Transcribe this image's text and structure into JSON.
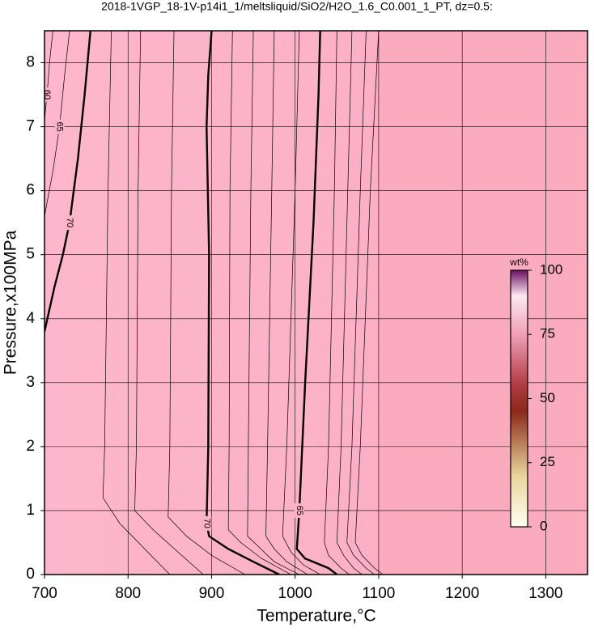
{
  "chart_data": {
    "type": "contour",
    "title": "2018-1VGP_18-1V-p14i1_1/meltsliquid/SiO2/H2O_1.6_C0.001_1_PT, dz=0.5:",
    "x_label": "Temperature,°C",
    "y_label": "Pressure,x100MPa",
    "xlim": [
      700,
      1350
    ],
    "ylim": [
      0,
      8.5
    ],
    "xticks": [
      700,
      800,
      900,
      1000,
      1100,
      1200,
      1300
    ],
    "yticks": [
      0,
      1,
      2,
      3,
      4,
      5,
      6,
      7,
      8
    ],
    "grid": true,
    "background": "#fcb3c9",
    "colorbar": {
      "label": "wt%",
      "lim": [
        0,
        100
      ],
      "ticks": [
        0,
        25,
        50,
        75,
        100
      ]
    },
    "contours": [
      {
        "level": 70,
        "labeled": true,
        "thick": true,
        "x": [
          900,
          896,
          894,
          897,
          896,
          894,
          897,
          920,
          950,
          981
        ],
        "y": [
          8.5,
          7.8,
          7.0,
          5.0,
          2.0,
          0.8,
          0.6,
          0.4,
          0.2,
          0
        ]
      },
      {
        "level": 65,
        "labeled": true,
        "thick": true,
        "x": [
          1030,
          1028,
          1022,
          1012,
          1005,
          1002,
          1012,
          1040,
          1050
        ],
        "y": [
          8.5,
          7.5,
          5.5,
          3.0,
          1.0,
          0.4,
          0.25,
          0.1,
          0
        ]
      },
      {
        "level": 70,
        "labeled": true,
        "thick": true,
        "x": [
          755,
          748,
          740,
          735,
          730,
          722,
          712,
          700
        ],
        "y": [
          8.5,
          7.5,
          6.5,
          6.0,
          5.5,
          5.0,
          4.5,
          3.8
        ]
      },
      {
        "level": 65,
        "labeled": true,
        "thick": false,
        "x": [
          730,
          724,
          718,
          710,
          700
        ],
        "y": [
          8.5,
          7.8,
          7.0,
          6.3,
          5.6
        ]
      },
      {
        "level": 60,
        "labeled": true,
        "thick": false,
        "x": [
          710,
          706,
          703,
          700
        ],
        "y": [
          8.5,
          8.0,
          7.5,
          7.1
        ]
      },
      {
        "level": 69,
        "labeled": false,
        "thick": false,
        "x": [
          925,
          922,
          921,
          920,
          935,
          960,
          995
        ],
        "y": [
          8.5,
          6.0,
          2.0,
          0.7,
          0.5,
          0.25,
          0
        ]
      },
      {
        "level": 68,
        "labeled": false,
        "thick": false,
        "x": [
          950,
          947,
          944,
          943,
          955,
          975,
          1005
        ],
        "y": [
          8.5,
          6.0,
          2.0,
          0.6,
          0.45,
          0.2,
          0
        ]
      },
      {
        "level": 67,
        "labeled": false,
        "thick": false,
        "x": [
          975,
          972,
          967,
          965,
          975,
          990,
          1015
        ],
        "y": [
          8.5,
          6.0,
          2.0,
          0.6,
          0.4,
          0.2,
          0
        ]
      },
      {
        "level": 66,
        "labeled": false,
        "thick": false,
        "x": [
          1005,
          1000,
          990,
          985,
          995,
          1010,
          1030
        ],
        "y": [
          8.5,
          6.0,
          2.0,
          0.6,
          0.35,
          0.15,
          0
        ]
      },
      {
        "level": 64,
        "labeled": false,
        "thick": false,
        "x": [
          1050,
          1047,
          1040,
          1035,
          1040,
          1055,
          1065
        ],
        "y": [
          8.5,
          6.0,
          2.0,
          0.5,
          0.3,
          0.1,
          0
        ]
      },
      {
        "level": 63,
        "labeled": false,
        "thick": false,
        "x": [
          1068,
          1063,
          1055,
          1050,
          1058,
          1070,
          1080
        ],
        "y": [
          8.5,
          6.0,
          2.0,
          0.5,
          0.3,
          0.1,
          0
        ]
      },
      {
        "level": 62,
        "labeled": false,
        "thick": false,
        "x": [
          1085,
          1078,
          1068,
          1062,
          1070,
          1085,
          1095
        ],
        "y": [
          8.5,
          6.0,
          2.0,
          0.5,
          0.3,
          0.1,
          0
        ]
      },
      {
        "level": 61,
        "labeled": false,
        "thick": false,
        "x": [
          1100,
          1090,
          1078,
          1072,
          1080,
          1095,
          1105
        ],
        "y": [
          8.5,
          6.0,
          2.0,
          0.5,
          0.3,
          0.1,
          0
        ]
      },
      {
        "level": 72,
        "labeled": false,
        "thick": false,
        "x": [
          855,
          852,
          850,
          848,
          870,
          900,
          940
        ],
        "y": [
          8.5,
          6.0,
          2.0,
          0.9,
          0.6,
          0.3,
          0
        ]
      },
      {
        "level": 74,
        "labeled": false,
        "thick": false,
        "x": [
          815,
          812,
          810,
          808,
          830,
          860,
          890
        ],
        "y": [
          8.5,
          6.0,
          2.0,
          1.0,
          0.7,
          0.35,
          0
        ]
      },
      {
        "level": 76,
        "labeled": false,
        "thick": false,
        "x": [
          780,
          776,
          772,
          770,
          790,
          820,
          850
        ],
        "y": [
          8.5,
          6.0,
          2.0,
          1.2,
          0.8,
          0.4,
          0
        ]
      }
    ]
  }
}
